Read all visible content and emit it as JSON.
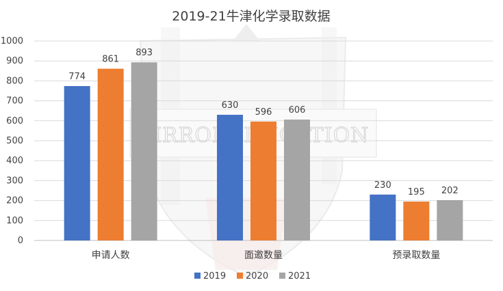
{
  "chart_data": {
    "type": "bar",
    "title": "2019-21牛津化学录取数据",
    "xlabel": "",
    "ylabel": "",
    "categories": [
      "申请人数",
      "面邀数量",
      "预录取数量"
    ],
    "series": [
      {
        "name": "2019",
        "values": [
          774,
          630,
          230
        ],
        "color": "#4472C4"
      },
      {
        "name": "2020",
        "values": [
          861,
          596,
          195
        ],
        "color": "#ED7D31"
      },
      {
        "name": "2021",
        "values": [
          893,
          606,
          202
        ],
        "color": "#A5A5A5"
      }
    ],
    "ylim": [
      0,
      1000
    ],
    "yticks": [
      0,
      100,
      200,
      300,
      400,
      500,
      600,
      700,
      800,
      900,
      1000
    ],
    "grid": true,
    "data_labels": true,
    "legend_position": "bottom"
  },
  "watermark": {
    "text": "MIRROREDUCATION",
    "color": "#d0d0d0"
  }
}
